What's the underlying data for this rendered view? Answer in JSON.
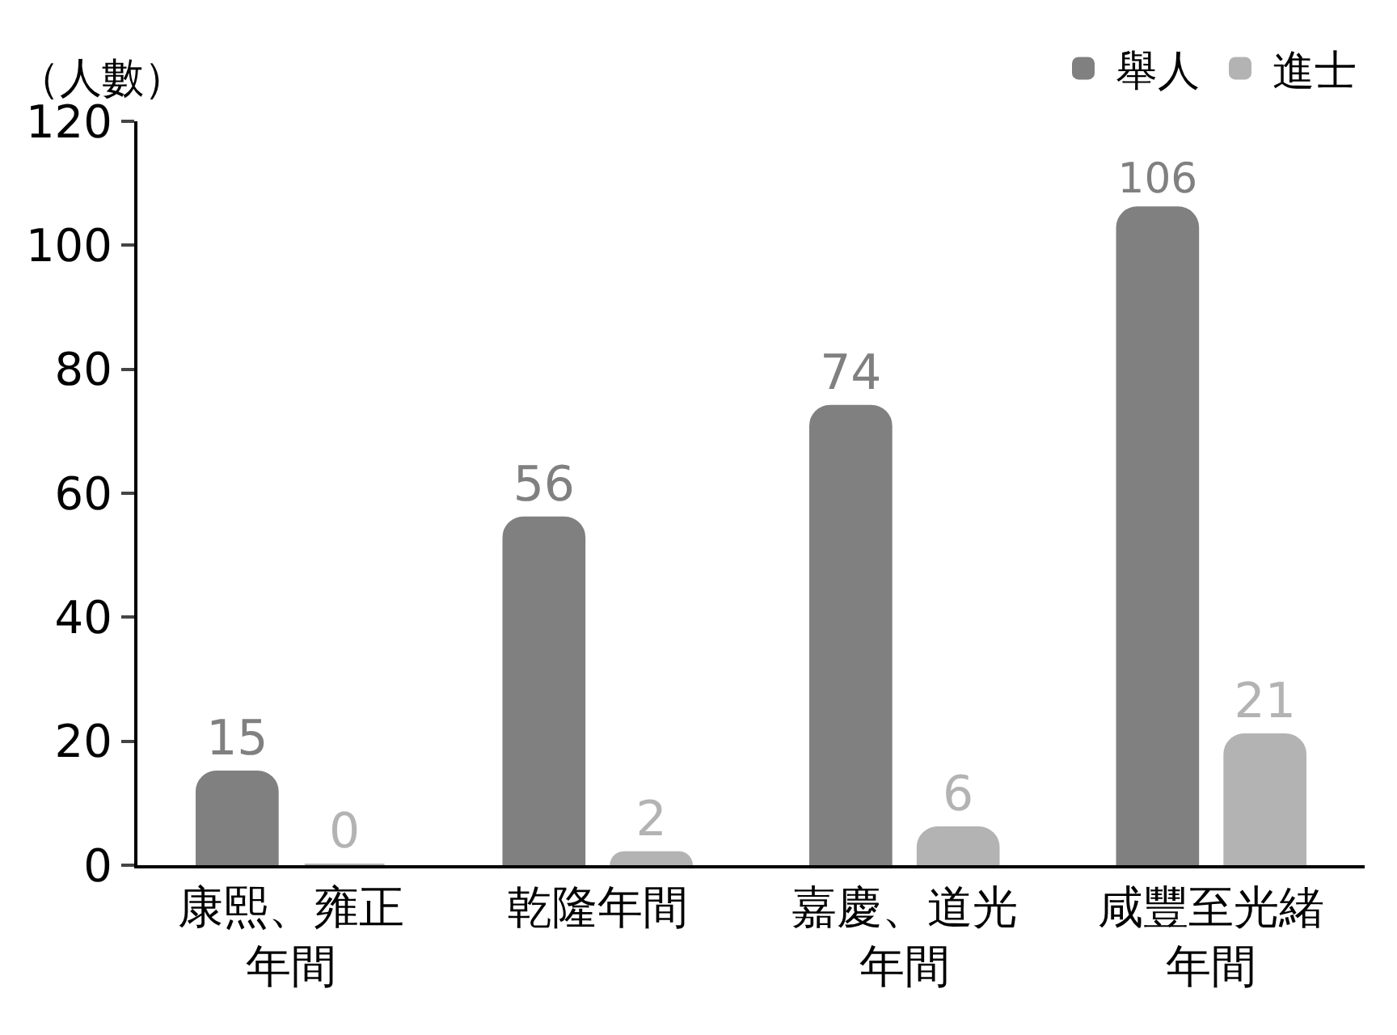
{
  "chart_data": {
    "type": "bar",
    "ylabel": "（人數）",
    "categories": [
      "康熙、雍正年間",
      "乾隆年間",
      "嘉慶、道光年間",
      "咸豐至光緒年間"
    ],
    "series": [
      {
        "name": "舉人",
        "color": "#808080",
        "values": [
          15,
          56,
          74,
          106
        ]
      },
      {
        "name": "進士",
        "color": "#b3b3b3",
        "values": [
          0,
          2,
          6,
          21
        ]
      }
    ],
    "ylim": [
      0,
      120
    ],
    "yticks": [
      0,
      20,
      40,
      60,
      80,
      100,
      120
    ],
    "data_labels": true,
    "grid": false,
    "legend": "top right"
  }
}
